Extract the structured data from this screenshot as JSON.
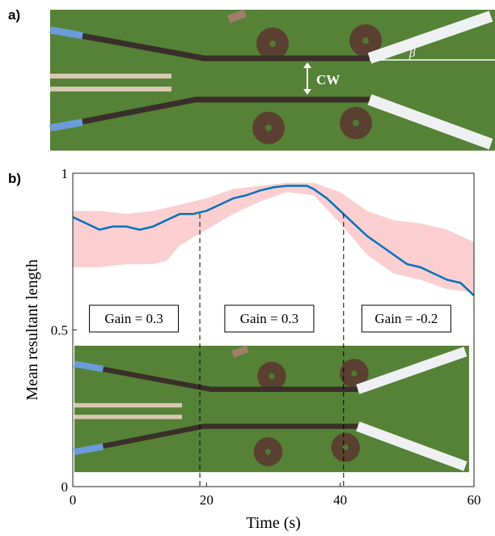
{
  "panel_a": {
    "label": "a)",
    "cw": "CW",
    "beta": "β"
  },
  "panel_b_label": "b)",
  "chart_data": {
    "type": "line",
    "xlabel": "Time (s)",
    "ylabel": "Mean resultant length",
    "xlim": [
      0,
      60
    ],
    "ylim": [
      0,
      1
    ],
    "xticks": [
      0,
      20,
      40,
      60
    ],
    "yticks": [
      0,
      0.5,
      1
    ],
    "series": [
      {
        "color": "#0072bd",
        "x": [
          0,
          2,
          4,
          6,
          8,
          10,
          12,
          14,
          16,
          18,
          20,
          22,
          24,
          26,
          28,
          30,
          32,
          34,
          35,
          36,
          38,
          40,
          42,
          44,
          46,
          48,
          50,
          52,
          54,
          56,
          58,
          60
        ],
        "values": [
          0.86,
          0.84,
          0.82,
          0.83,
          0.83,
          0.82,
          0.83,
          0.85,
          0.87,
          0.87,
          0.88,
          0.9,
          0.92,
          0.93,
          0.945,
          0.955,
          0.96,
          0.96,
          0.96,
          0.95,
          0.92,
          0.88,
          0.84,
          0.8,
          0.77,
          0.74,
          0.71,
          0.7,
          0.68,
          0.66,
          0.65,
          0.61
        ]
      }
    ],
    "band": {
      "color": "#fbcfcf",
      "x": [
        0,
        4,
        8,
        12,
        14,
        16,
        20,
        24,
        28,
        32,
        36,
        40,
        44,
        48,
        52,
        56,
        60
      ],
      "upper": [
        0.88,
        0.88,
        0.87,
        0.88,
        0.89,
        0.9,
        0.92,
        0.95,
        0.96,
        0.97,
        0.97,
        0.94,
        0.88,
        0.85,
        0.84,
        0.82,
        0.78
      ],
      "lower": [
        0.7,
        0.7,
        0.71,
        0.71,
        0.72,
        0.77,
        0.82,
        0.87,
        0.91,
        0.94,
        0.93,
        0.84,
        0.74,
        0.68,
        0.66,
        0.63,
        0.62
      ]
    },
    "vlines": [
      19,
      40.5
    ],
    "annotations": [
      "Gain = 0.3",
      "Gain = 0.3",
      "Gain = -0.2"
    ]
  }
}
